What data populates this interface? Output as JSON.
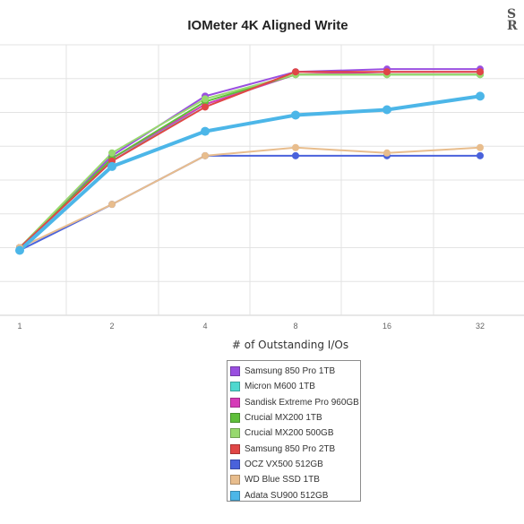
{
  "chart_data": {
    "type": "line",
    "title": "IOMeter 4K Aligned Write",
    "xlabel": "# of Outstanding I/Os",
    "ylabel": "",
    "categories": [
      "1",
      "2",
      "4",
      "8",
      "16",
      "32"
    ],
    "grid": true,
    "legend_position": "bottom-center",
    "series": [
      {
        "name": "Samsung 850 Pro 1TB",
        "color": "#9a4fe0",
        "values": [
          0.25,
          0.59,
          0.81,
          0.9,
          0.91,
          0.91
        ]
      },
      {
        "name": "Micron M600 1TB",
        "color": "#4fd8cf",
        "values": [
          0.25,
          0.57,
          0.78,
          0.89,
          0.89,
          0.89
        ]
      },
      {
        "name": "Sandisk Extreme Pro 960GB",
        "color": "#d63bb8",
        "values": [
          0.25,
          0.58,
          0.78,
          0.89,
          0.9,
          0.9
        ]
      },
      {
        "name": "Crucial MX200 1TB",
        "color": "#5fbf3a",
        "values": [
          0.25,
          0.58,
          0.79,
          0.89,
          0.89,
          0.89
        ]
      },
      {
        "name": "Crucial MX200 500GB",
        "color": "#98d96e",
        "values": [
          0.25,
          0.6,
          0.8,
          0.89,
          0.89,
          0.89
        ]
      },
      {
        "name": "Samsung 850 Pro 2TB",
        "color": "#e04646",
        "values": [
          0.25,
          0.57,
          0.77,
          0.9,
          0.9,
          0.9
        ]
      },
      {
        "name": "OCZ VX500 512GB",
        "color": "#4a62db",
        "values": [
          0.24,
          0.41,
          0.59,
          0.59,
          0.59,
          0.59
        ]
      },
      {
        "name": "WD Blue SSD 1TB",
        "color": "#e8bd8d",
        "values": [
          0.25,
          0.41,
          0.59,
          0.62,
          0.6,
          0.62
        ]
      },
      {
        "name": "Adata SU900 512GB",
        "color": "#4cb6e8",
        "values": [
          0.24,
          0.55,
          0.68,
          0.74,
          0.76,
          0.81
        ]
      }
    ]
  }
}
